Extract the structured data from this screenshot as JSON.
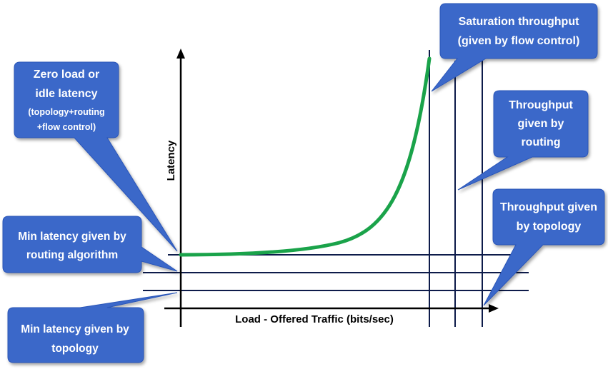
{
  "colors": {
    "callout_fill": "#3a67c9",
    "callout_stroke": "#2b56b8",
    "curve": "#1aa34a",
    "line": "#0d1b4a",
    "axis": "#000000"
  },
  "axes": {
    "x_label": "Load - Offered Traffic (bits/sec)",
    "y_label": "Latency"
  },
  "callouts": {
    "zero_load": {
      "line1": "Zero load or",
      "line2": "idle latency",
      "line3": "(topology+routing",
      "line4": "+flow control)"
    },
    "min_latency_routing": {
      "line1": "Min latency given by",
      "line2": "routing algorithm"
    },
    "min_latency_topology": {
      "line1": "Min latency given by",
      "line2": "topology"
    },
    "saturation": {
      "line1": "Saturation throughput",
      "line2": "(given by flow control)"
    },
    "throughput_routing": {
      "line1": "Throughput",
      "line2": "given by",
      "line3": "routing"
    },
    "throughput_topology": {
      "line1": "Throughput given",
      "line2": "by topology"
    }
  }
}
